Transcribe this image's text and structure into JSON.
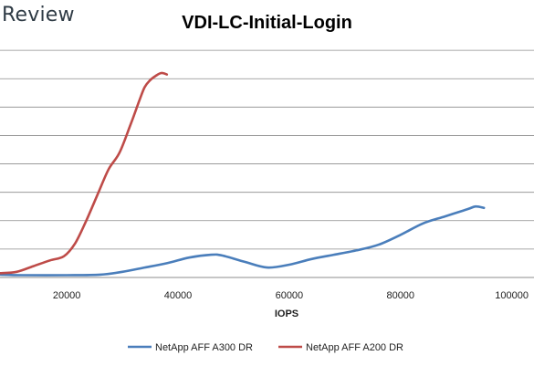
{
  "brand": "Review",
  "chart_data": {
    "type": "line",
    "title": "VDI-LC-Initial-Login",
    "xlabel": "IOPS",
    "ylabel": "",
    "xlim": [
      8000,
      104000
    ],
    "ylim": [
      0,
      9
    ],
    "x_ticks": [
      20000,
      40000,
      60000,
      80000,
      100000
    ],
    "x_tick_labels": [
      "20000",
      "40000",
      "60000",
      "80000",
      "100000"
    ],
    "y_gridlines": [
      1,
      2,
      3,
      4,
      5,
      6,
      7,
      8
    ],
    "grid": true,
    "legend": "bottom",
    "series": [
      {
        "name": "NetApp AFF A300 DR",
        "color": "#4a7ebb",
        "x": [
          8000,
          12000,
          20000,
          26000,
          30000,
          34000,
          38000,
          42000,
          46000,
          48000,
          52000,
          56000,
          60000,
          64000,
          68000,
          72000,
          76000,
          80000,
          84000,
          88000,
          92000,
          93500,
          95000
        ],
        "y": [
          0.1,
          0.08,
          0.08,
          0.1,
          0.2,
          0.35,
          0.5,
          0.7,
          0.8,
          0.77,
          0.55,
          0.35,
          0.45,
          0.65,
          0.8,
          0.95,
          1.15,
          1.5,
          1.9,
          2.15,
          2.4,
          2.5,
          2.45
        ]
      },
      {
        "name": "NetApp AFF A200 DR",
        "color": "#be4b48",
        "x": [
          8000,
          11000,
          14000,
          17000,
          19500,
          21500,
          23500,
          25500,
          27500,
          29500,
          31500,
          33000,
          34000,
          35000,
          36000,
          37000,
          38000
        ],
        "y": [
          0.15,
          0.2,
          0.4,
          0.6,
          0.75,
          1.2,
          2.0,
          2.9,
          3.8,
          4.4,
          5.4,
          6.2,
          6.7,
          6.95,
          7.1,
          7.2,
          7.15
        ]
      }
    ]
  }
}
